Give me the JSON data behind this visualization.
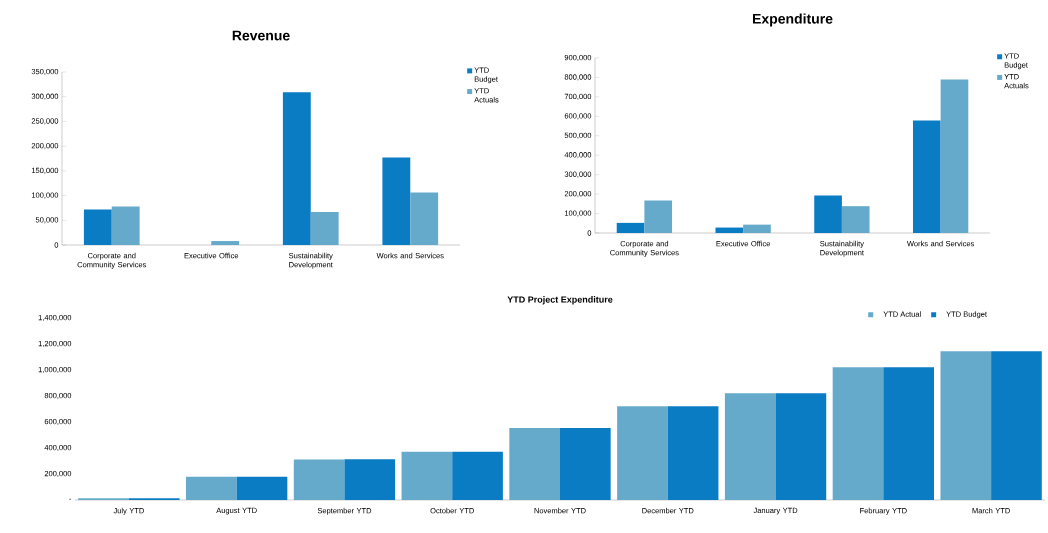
{
  "chart_data": [
    {
      "type": "bar",
      "title": "Revenue",
      "categories": [
        "Corporate and Community Services",
        "Executive Office",
        "Sustainability Development",
        "Works and Services"
      ],
      "series": [
        {
          "name": "YTD Budget",
          "color": "#0a7cc4",
          "values": [
            72000,
            0,
            309000,
            177000
          ]
        },
        {
          "name": "YTD Actuals",
          "color": "#66aacb",
          "values": [
            78000,
            8000,
            67000,
            106000
          ]
        }
      ],
      "ylim": [
        0,
        350000
      ],
      "yticks": [
        0,
        {
          "value": 50000,
          "label": "50,000"
        },
        {
          "value": 100000,
          "label": "100,000"
        },
        {
          "value": 150000,
          "label": "150,000"
        },
        {
          "value": 200000,
          "label": "200,000"
        },
        {
          "value": 250000,
          "label": "250,000"
        },
        {
          "value": 300000,
          "label": "300,000"
        },
        {
          "value": 350000,
          "label": "350,000"
        }
      ],
      "legend": "right"
    },
    {
      "type": "bar",
      "title": "Expenditure",
      "categories": [
        "Corporate and Community Services",
        "Executive Office",
        "Sustainability Development",
        "Works and Services"
      ],
      "series": [
        {
          "name": "YTD Budget",
          "color": "#0a7cc4",
          "values": [
            52000,
            28000,
            193000,
            579000
          ]
        },
        {
          "name": "YTD Actuals",
          "color": "#66aacb",
          "values": [
            167000,
            43000,
            138000,
            790000
          ]
        }
      ],
      "ylim": [
        0,
        900000
      ],
      "yticks": [
        0,
        {
          "value": 100000,
          "label": "100,000"
        },
        {
          "value": 200000,
          "label": "200,000"
        },
        {
          "value": 300000,
          "label": "300,000"
        },
        {
          "value": 400000,
          "label": "400,000"
        },
        {
          "value": 500000,
          "label": "500,000"
        },
        {
          "value": 600000,
          "label": "600,000"
        },
        {
          "value": 700000,
          "label": "700,000"
        },
        {
          "value": 800000,
          "label": "800,000"
        },
        {
          "value": 900000,
          "label": "900,000"
        }
      ],
      "legend": "right"
    },
    {
      "type": "bar",
      "title": "YTD Project Expenditure",
      "categories": [
        "July YTD",
        "August YTD",
        "September YTD",
        "October YTD",
        "November YTD",
        "December YTD",
        "January YTD",
        "February YTD",
        "March YTD"
      ],
      "series": [
        {
          "name": "YTD Actual",
          "color": "#66aacb",
          "values": [
            14000,
            178000,
            311000,
            372000,
            553000,
            722000,
            822000,
            1022000,
            1144000
          ]
        },
        {
          "name": "YTD Budget",
          "color": "#0a7cc4",
          "values": [
            14000,
            178000,
            314000,
            372000,
            553000,
            722000,
            822000,
            1022000,
            1144000
          ]
        }
      ],
      "ylim": [
        0,
        1400000
      ],
      "yticks": [
        {
          "value": 0,
          "label": "-"
        },
        {
          "value": 200000,
          "label": "200,000"
        },
        {
          "value": 400000,
          "label": "400,000"
        },
        {
          "value": 600000,
          "label": "600,000"
        },
        {
          "value": 800000,
          "label": "800,000"
        },
        {
          "value": 1000000,
          "label": "1,000,000"
        },
        {
          "value": 1200000,
          "label": "1,200,000"
        },
        {
          "value": 1400000,
          "label": "1,400,000"
        }
      ],
      "legend": "top right"
    }
  ]
}
